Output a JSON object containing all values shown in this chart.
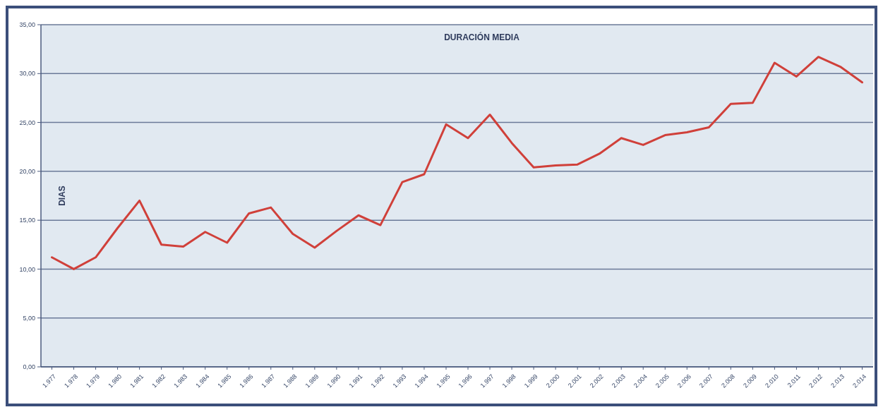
{
  "chart_data": {
    "type": "line",
    "title": "DURACIÓN MEDIA",
    "ylabel": "DIAS",
    "categories": [
      "1.977",
      "1.978",
      "1.979",
      "1.980",
      "1.981",
      "1.982",
      "1.983",
      "1.984",
      "1.985",
      "1.986",
      "1.987",
      "1.988",
      "1.989",
      "1.990",
      "1.991",
      "1.992",
      "1.993",
      "1.994",
      "1.995",
      "1.996",
      "1.997",
      "1.998",
      "1.999",
      "2.000",
      "2.001",
      "2.002",
      "2.003",
      "2.004",
      "2.005",
      "2.006",
      "2.007",
      "2.008",
      "2.009",
      "2.010",
      "2.011",
      "2.012",
      "2.013",
      "2.014"
    ],
    "series": [
      {
        "color": "#d0403a",
        "values": [
          11.2,
          10.0,
          11.2,
          14.2,
          17.0,
          12.5,
          12.3,
          13.8,
          12.7,
          15.7,
          16.3,
          13.6,
          12.2,
          13.9,
          15.5,
          14.5,
          18.9,
          19.7,
          24.8,
          23.4,
          25.8,
          22.9,
          20.4,
          20.6,
          20.7,
          21.8,
          23.4,
          22.7,
          23.7,
          24.0,
          24.5,
          26.9,
          27.0,
          31.1,
          29.7,
          31.7,
          30.7,
          29.1
        ]
      }
    ],
    "ylim": [
      0,
      35
    ],
    "yticks": [
      {
        "value": 0,
        "label": "0,00"
      },
      {
        "value": 5,
        "label": "5,00"
      },
      {
        "value": 10,
        "label": "10,00"
      },
      {
        "value": 15,
        "label": "15,00"
      },
      {
        "value": 20,
        "label": "20,00"
      },
      {
        "value": 25,
        "label": "25,00"
      },
      {
        "value": 30,
        "label": "30,00"
      },
      {
        "value": 35,
        "label": "35,00"
      }
    ],
    "grid": "y",
    "marker": "none",
    "line_style": "solid"
  }
}
